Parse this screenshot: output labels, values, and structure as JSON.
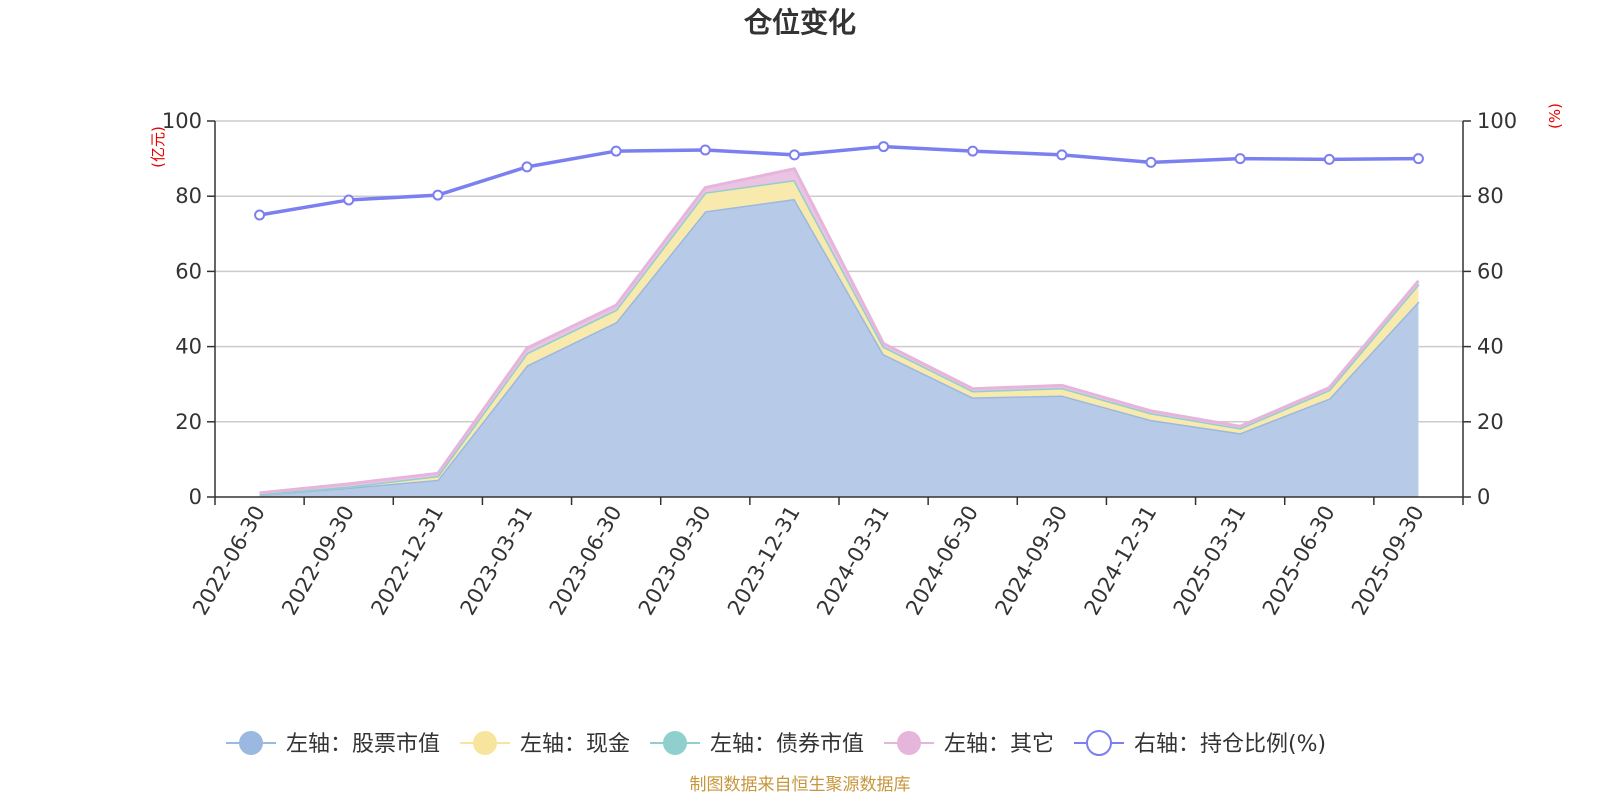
{
  "chart_data": {
    "type": "area",
    "title": "仓位变化",
    "categories": [
      "2022-06-30",
      "2022-09-30",
      "2022-12-31",
      "2023-03-31",
      "2023-06-30",
      "2023-09-30",
      "2023-12-31",
      "2024-03-31",
      "2024-06-30",
      "2024-09-30",
      "2024-12-31",
      "2025-03-31",
      "2025-06-30",
      "2025-09-30"
    ],
    "left_axis": {
      "unit": "(亿元)",
      "ylim": [
        0,
        100
      ],
      "ticks": [
        0,
        20,
        40,
        60,
        80,
        100
      ]
    },
    "right_axis": {
      "unit": "(%)",
      "ylim": [
        0,
        100
      ],
      "ticks": [
        0,
        20,
        40,
        60,
        80,
        100
      ]
    },
    "stacked": true,
    "series": [
      {
        "name": "左轴：股票市值",
        "axis": "left",
        "kind": "area",
        "color": "#9bb8e0",
        "fill": "#b7cbe9",
        "values": [
          0.6,
          2.5,
          4.6,
          35.0,
          46.5,
          76.0,
          79.3,
          38.0,
          26.5,
          27.0,
          20.5,
          17.0,
          26.2,
          52.0
        ]
      },
      {
        "name": "左轴：现金",
        "axis": "left",
        "kind": "area",
        "color": "#f7e59e",
        "fill": "#f8e9ad",
        "values": [
          0.2,
          0.3,
          1.0,
          3.3,
          3.3,
          5.0,
          5.0,
          2.0,
          1.7,
          2.0,
          1.8,
          1.3,
          2.3,
          4.6
        ]
      },
      {
        "name": "左轴：债券市值",
        "axis": "left",
        "kind": "area",
        "color": "#8fd0cf",
        "fill": "#a6dad9",
        "values": [
          0,
          0,
          0,
          0,
          0,
          0,
          0,
          0,
          0,
          0,
          0,
          0,
          0,
          0
        ]
      },
      {
        "name": "左轴：其它",
        "axis": "left",
        "kind": "area",
        "color": "#e6b5dc",
        "fill": "#ebc3e3",
        "values": [
          0.3,
          0.7,
          0.7,
          1.3,
          1.2,
          1.3,
          3.0,
          0.8,
          0.6,
          0.7,
          0.6,
          0.5,
          0.6,
          0.9
        ]
      },
      {
        "name": "右轴：持仓比例(%)",
        "axis": "right",
        "kind": "line",
        "color": "#7b7ff0",
        "values": [
          75.0,
          79.0,
          80.3,
          87.8,
          92.0,
          92.3,
          91.0,
          93.2,
          92.0,
          91.0,
          89.0,
          90.0,
          89.8,
          90.0
        ]
      }
    ],
    "legend_position": "bottom",
    "grid": true
  },
  "source_note": "制图数据来自恒生聚源数据库"
}
